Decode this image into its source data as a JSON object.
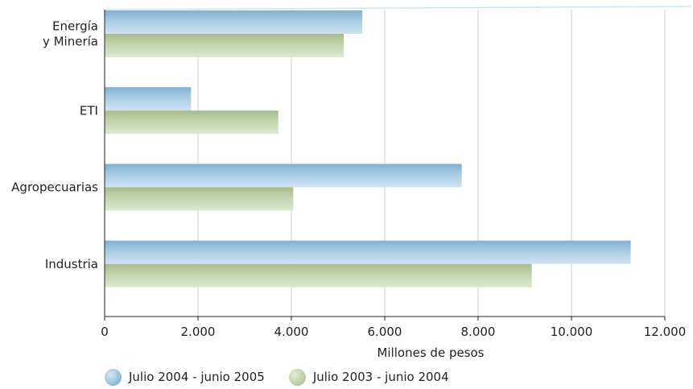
{
  "chart_data": {
    "type": "bar",
    "orientation": "horizontal",
    "title": "",
    "xlabel": "Millones de pesos",
    "ylabel": "",
    "categories": [
      "Energía\ny Minería",
      "ETI",
      "Agropecuarias",
      "Industria"
    ],
    "series": [
      {
        "name": "Julio 2004 - junio 2005",
        "values": [
          5520,
          1850,
          7650,
          11270
        ]
      },
      {
        "name": "Julio 2003 - junio 2004",
        "values": [
          5120,
          3720,
          4040,
          9150
        ]
      }
    ],
    "xlim": [
      0,
      12000
    ],
    "xticks": [
      0,
      2000,
      4000,
      6000,
      8000,
      10000,
      12000
    ],
    "xtick_labels": [
      "0",
      "2.000",
      "4.000",
      "6.000",
      "8.000",
      "10.000",
      "12.000"
    ],
    "grid": "vertical",
    "legend_position": "bottom"
  },
  "colors": {
    "series_0_top": "#d3e6f3",
    "series_0_base": "#9cc4de",
    "series_1_top": "#c9d9b4",
    "series_1_base": "#bfd1a6",
    "gridline": "#cfcfcf",
    "axis": "#231f20"
  }
}
